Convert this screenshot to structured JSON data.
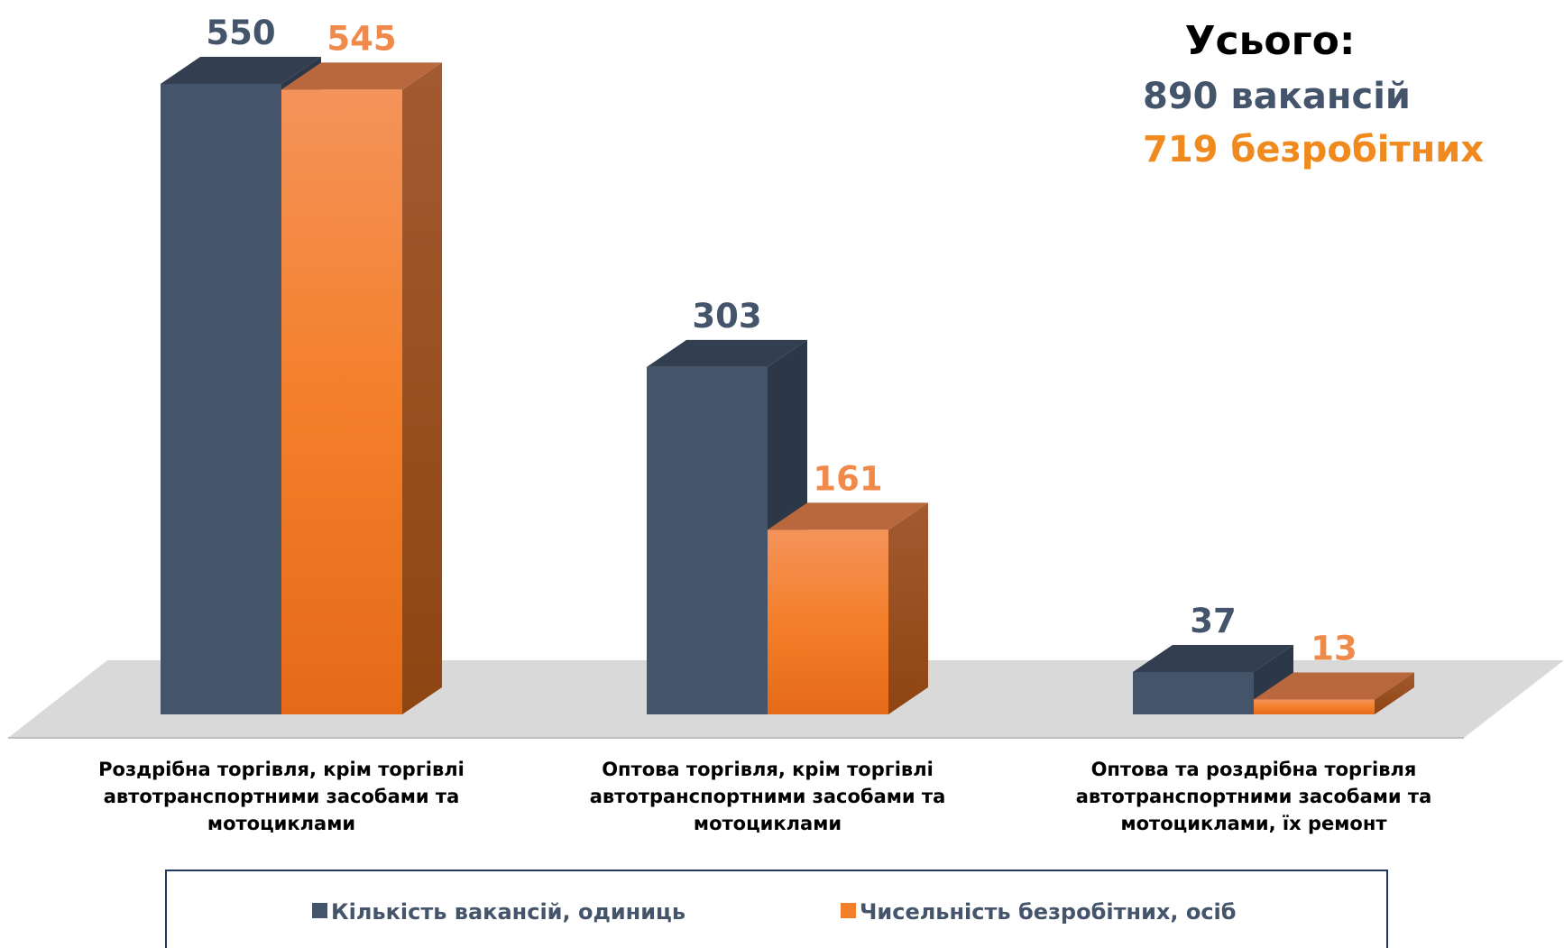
{
  "chart_data": {
    "type": "bar3d",
    "categories": [
      "Роздрібна торгівля, крім торгівлі автотранспортними засобами та мотоциклами",
      "Оптова торгівля, крім торгівлі автотранспортними засобами та мотоциклами",
      "Оптова та роздрібна торгівля автотранспортними засобами та мотоциклами, їх ремонт"
    ],
    "series": [
      {
        "name": "Кількість вакансій, одиниць",
        "color": "#44546a",
        "values": [
          550,
          303,
          37
        ]
      },
      {
        "name": "Чисельність безробітних, осіб",
        "color": "#f47f2a",
        "values": [
          545,
          161,
          13
        ]
      }
    ],
    "annotations": [
      {
        "text": "Усього:",
        "color": "#000000"
      },
      {
        "text": "890 вакансій",
        "color": "#44546a"
      },
      {
        "text": "719 безробітних",
        "color": "#f08a1e"
      }
    ],
    "legend": "bottom"
  }
}
